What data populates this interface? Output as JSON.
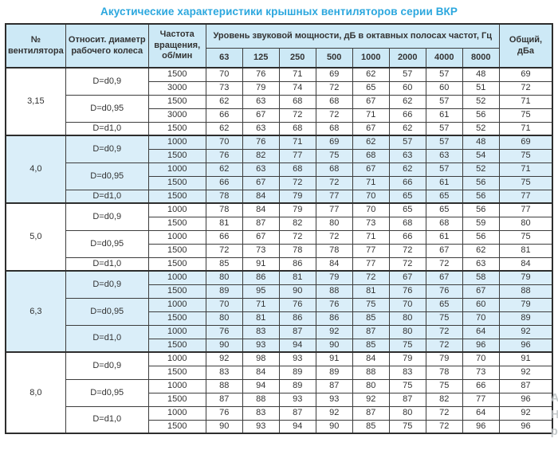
{
  "title": "Акустические характеристики крышных вентиляторов серии ВКР",
  "colors": {
    "title_accent": "#2ba7de",
    "header_bg": "#cde9f6",
    "shaded_row_bg": "#daeef9",
    "border": "#2d2d2d"
  },
  "table": {
    "headers": {
      "fan_no": "№ вентилятора",
      "diameter": "Относит. диаметр рабочего колеса",
      "speed": "Частота вращения, об/мин",
      "spl_group": "Уровень звуковой мощности, дБ в октавных полосах частот, Гц",
      "freq_bands": [
        "63",
        "125",
        "250",
        "500",
        "1000",
        "2000",
        "4000",
        "8000"
      ],
      "total": "Общий, дБа"
    },
    "sections": [
      {
        "fan": "3,15",
        "shaded": false,
        "groups": [
          {
            "diameter": "D=d0,9",
            "rows": [
              {
                "speed": "1500",
                "levels": [
                  70,
                  76,
                  71,
                  69,
                  62,
                  57,
                  57,
                  48
                ],
                "total": 69
              },
              {
                "speed": "3000",
                "levels": [
                  73,
                  79,
                  74,
                  72,
                  65,
                  60,
                  60,
                  51
                ],
                "total": 72
              }
            ]
          },
          {
            "diameter": "D=d0,95",
            "rows": [
              {
                "speed": "1500",
                "levels": [
                  62,
                  63,
                  68,
                  68,
                  67,
                  62,
                  57,
                  52
                ],
                "total": 71
              },
              {
                "speed": "3000",
                "levels": [
                  66,
                  67,
                  72,
                  72,
                  71,
                  66,
                  61,
                  56
                ],
                "total": 75
              }
            ]
          },
          {
            "diameter": "D=d1,0",
            "rows": [
              {
                "speed": "1500",
                "levels": [
                  62,
                  63,
                  68,
                  68,
                  67,
                  62,
                  57,
                  52
                ],
                "total": 71
              }
            ]
          }
        ]
      },
      {
        "fan": "4,0",
        "shaded": true,
        "groups": [
          {
            "diameter": "D=d0,9",
            "rows": [
              {
                "speed": "1000",
                "levels": [
                  70,
                  76,
                  71,
                  69,
                  62,
                  57,
                  57,
                  48
                ],
                "total": 69
              },
              {
                "speed": "1500",
                "levels": [
                  76,
                  82,
                  77,
                  75,
                  68,
                  63,
                  63,
                  54
                ],
                "total": 75
              }
            ]
          },
          {
            "diameter": "D=d0,95",
            "rows": [
              {
                "speed": "1000",
                "levels": [
                  62,
                  63,
                  68,
                  68,
                  67,
                  62,
                  57,
                  52
                ],
                "total": 71
              },
              {
                "speed": "1500",
                "levels": [
                  66,
                  67,
                  72,
                  72,
                  71,
                  66,
                  61,
                  56
                ],
                "total": 75
              }
            ]
          },
          {
            "diameter": "D=d1,0",
            "rows": [
              {
                "speed": "1500",
                "levels": [
                  78,
                  84,
                  79,
                  77,
                  70,
                  65,
                  65,
                  56
                ],
                "total": 77
              }
            ]
          }
        ]
      },
      {
        "fan": "5,0",
        "shaded": false,
        "groups": [
          {
            "diameter": "D=d0,9",
            "rows": [
              {
                "speed": "1000",
                "levels": [
                  78,
                  84,
                  79,
                  77,
                  70,
                  65,
                  65,
                  56
                ],
                "total": 77
              },
              {
                "speed": "1500",
                "levels": [
                  81,
                  87,
                  82,
                  80,
                  73,
                  68,
                  68,
                  59
                ],
                "total": 80
              }
            ]
          },
          {
            "diameter": "D=d0,95",
            "rows": [
              {
                "speed": "1000",
                "levels": [
                  66,
                  67,
                  72,
                  72,
                  71,
                  66,
                  61,
                  56
                ],
                "total": 75
              },
              {
                "speed": "1500",
                "levels": [
                  72,
                  73,
                  78,
                  78,
                  77,
                  72,
                  67,
                  62
                ],
                "total": 81
              }
            ]
          },
          {
            "diameter": "D=d1,0",
            "rows": [
              {
                "speed": "1500",
                "levels": [
                  85,
                  91,
                  86,
                  84,
                  77,
                  72,
                  72,
                  63
                ],
                "total": 84
              }
            ]
          }
        ]
      },
      {
        "fan": "6,3",
        "shaded": true,
        "groups": [
          {
            "diameter": "D=d0,9",
            "rows": [
              {
                "speed": "1000",
                "levels": [
                  80,
                  86,
                  81,
                  79,
                  72,
                  67,
                  67,
                  58
                ],
                "total": 79
              },
              {
                "speed": "1500",
                "levels": [
                  89,
                  95,
                  90,
                  88,
                  81,
                  76,
                  76,
                  67
                ],
                "total": 88
              }
            ]
          },
          {
            "diameter": "D=d0,95",
            "rows": [
              {
                "speed": "1000",
                "levels": [
                  70,
                  71,
                  76,
                  76,
                  75,
                  70,
                  65,
                  60
                ],
                "total": 79
              },
              {
                "speed": "1500",
                "levels": [
                  80,
                  81,
                  86,
                  86,
                  85,
                  80,
                  75,
                  70
                ],
                "total": 89
              }
            ]
          },
          {
            "diameter": "D=d1,0",
            "rows": [
              {
                "speed": "1000",
                "levels": [
                  76,
                  83,
                  87,
                  92,
                  87,
                  80,
                  72,
                  64
                ],
                "total": 92
              },
              {
                "speed": "1500",
                "levels": [
                  90,
                  93,
                  94,
                  90,
                  85,
                  75,
                  72,
                  96
                ],
                "total": 96
              }
            ]
          }
        ]
      },
      {
        "fan": "8,0",
        "shaded": false,
        "groups": [
          {
            "diameter": "D=d0,9",
            "rows": [
              {
                "speed": "1000",
                "levels": [
                  92,
                  98,
                  93,
                  91,
                  84,
                  79,
                  79,
                  70
                ],
                "total": 91
              },
              {
                "speed": "1500",
                "levels": [
                  83,
                  84,
                  89,
                  89,
                  88,
                  83,
                  78,
                  73
                ],
                "total": 92
              }
            ]
          },
          {
            "diameter": "D=d0,95",
            "rows": [
              {
                "speed": "1000",
                "levels": [
                  88,
                  94,
                  89,
                  87,
                  80,
                  75,
                  75,
                  66
                ],
                "total": 87
              },
              {
                "speed": "1500",
                "levels": [
                  87,
                  88,
                  93,
                  93,
                  92,
                  87,
                  82,
                  77
                ],
                "total": 96
              }
            ]
          },
          {
            "diameter": "D=d1,0",
            "rows": [
              {
                "speed": "1000",
                "levels": [
                  76,
                  83,
                  87,
                  92,
                  87,
                  80,
                  72,
                  64
                ],
                "total": 92
              },
              {
                "speed": "1500",
                "levels": [
                  90,
                  93,
                  94,
                  90,
                  85,
                  75,
                  72,
                  96
                ],
                "total": 96
              }
            ]
          }
        ]
      }
    ]
  },
  "watermark": {
    "lines": [
      "Ак",
      "Нт",
      "ра"
    ]
  }
}
